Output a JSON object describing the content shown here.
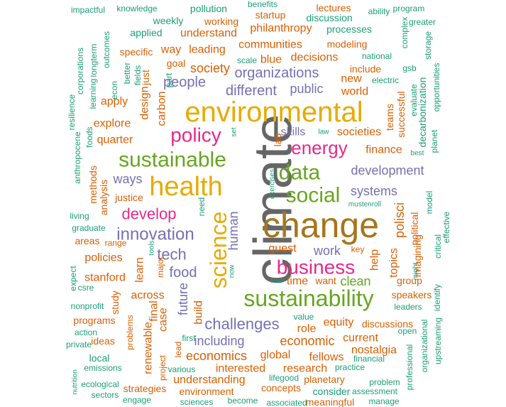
{
  "colors": {
    "teal": "#1b9e77",
    "orange": "#d95f02",
    "purple": "#7570b3",
    "magenta": "#e7298a",
    "green": "#66a61e",
    "gold": "#e6ab02",
    "brown": "#a6761d",
    "gray": "#666666"
  },
  "words": [
    {
      "text": "climate",
      "color": "gray"
    },
    {
      "text": "change",
      "color": "brown"
    },
    {
      "text": "environmental",
      "color": "gold"
    },
    {
      "text": "health",
      "color": "gold"
    },
    {
      "text": "sustainability",
      "color": "green"
    },
    {
      "text": "sustainable",
      "color": "green"
    },
    {
      "text": "science",
      "color": "gold"
    },
    {
      "text": "social",
      "color": "green"
    },
    {
      "text": "data",
      "color": "green"
    },
    {
      "text": "business",
      "color": "magenta"
    },
    {
      "text": "policy",
      "color": "magenta"
    },
    {
      "text": "energy",
      "color": "magenta"
    },
    {
      "text": "innovation",
      "color": "purple"
    },
    {
      "text": "develop",
      "color": "magenta"
    },
    {
      "text": "tech",
      "color": "purple"
    },
    {
      "text": "food",
      "color": "purple"
    },
    {
      "text": "challenges",
      "color": "purple"
    },
    {
      "text": "different",
      "color": "purple"
    },
    {
      "text": "organizations",
      "color": "purple"
    },
    {
      "text": "development",
      "color": "purple"
    },
    {
      "text": "systems",
      "color": "purple"
    },
    {
      "text": "people",
      "color": "purple"
    },
    {
      "text": "ways",
      "color": "purple"
    },
    {
      "text": "including",
      "color": "purple"
    },
    {
      "text": "work",
      "color": "purple"
    },
    {
      "text": "skills",
      "color": "purple"
    },
    {
      "text": "public",
      "color": "purple"
    },
    {
      "text": "human",
      "color": "purple"
    },
    {
      "text": "future",
      "color": "purple"
    },
    {
      "text": "polisci",
      "color": "orange"
    },
    {
      "text": "economic",
      "color": "orange"
    },
    {
      "text": "economics",
      "color": "orange"
    },
    {
      "text": "design",
      "color": "orange"
    },
    {
      "text": "carbon",
      "color": "orange"
    },
    {
      "text": "across",
      "color": "orange"
    },
    {
      "text": "societies",
      "color": "orange"
    },
    {
      "text": "finance",
      "color": "orange"
    },
    {
      "text": "world",
      "color": "orange"
    },
    {
      "text": "society",
      "color": "orange"
    },
    {
      "text": "explore",
      "color": "orange"
    },
    {
      "text": "quarter",
      "color": "orange"
    },
    {
      "text": "understand",
      "color": "orange"
    },
    {
      "text": "leading",
      "color": "orange"
    },
    {
      "text": "way",
      "color": "orange"
    },
    {
      "text": "philanthropy",
      "color": "orange"
    },
    {
      "text": "communities",
      "color": "orange"
    },
    {
      "text": "decisions",
      "color": "orange"
    },
    {
      "text": "blue",
      "color": "orange"
    },
    {
      "text": "new",
      "color": "orange"
    },
    {
      "text": "apply",
      "color": "orange"
    },
    {
      "text": "specific",
      "color": "orange"
    },
    {
      "text": "just",
      "color": "orange"
    },
    {
      "text": "goal",
      "color": "orange"
    },
    {
      "text": "policies",
      "color": "orange"
    },
    {
      "text": "stanford",
      "color": "orange"
    },
    {
      "text": "learn",
      "color": "orange"
    },
    {
      "text": "build",
      "color": "orange"
    },
    {
      "text": "case",
      "color": "orange"
    },
    {
      "text": "final",
      "color": "orange"
    },
    {
      "text": "study",
      "color": "orange"
    },
    {
      "text": "renewable",
      "color": "orange"
    },
    {
      "text": "interested",
      "color": "orange"
    },
    {
      "text": "understanding",
      "color": "orange"
    },
    {
      "text": "global",
      "color": "orange"
    },
    {
      "text": "research",
      "color": "orange"
    },
    {
      "text": "fellows",
      "color": "orange"
    },
    {
      "text": "equity",
      "color": "orange"
    },
    {
      "text": "role",
      "color": "orange"
    },
    {
      "text": "current",
      "color": "orange"
    },
    {
      "text": "nostalgia",
      "color": "orange"
    },
    {
      "text": "guest",
      "color": "orange"
    },
    {
      "text": "time",
      "color": "orange"
    },
    {
      "text": "clean",
      "color": "green"
    },
    {
      "text": "help",
      "color": "orange"
    },
    {
      "text": "topics",
      "color": "orange"
    },
    {
      "text": "imagining",
      "color": "orange"
    },
    {
      "text": "political",
      "color": "orange"
    },
    {
      "text": "speakers",
      "color": "orange"
    },
    {
      "text": "discussions",
      "color": "orange"
    },
    {
      "text": "methods",
      "color": "orange"
    },
    {
      "text": "analysis",
      "color": "orange"
    },
    {
      "text": "justice",
      "color": "orange"
    },
    {
      "text": "group",
      "color": "orange"
    },
    {
      "text": "modeling",
      "color": "orange"
    },
    {
      "text": "include",
      "color": "orange"
    },
    {
      "text": "teams",
      "color": "orange"
    },
    {
      "text": "successful",
      "color": "orange"
    },
    {
      "text": "lab",
      "color": "orange"
    },
    {
      "text": "planetary",
      "color": "orange"
    },
    {
      "text": "concepts",
      "color": "orange"
    },
    {
      "text": "environment",
      "color": "orange"
    },
    {
      "text": "strategies",
      "color": "orange"
    },
    {
      "text": "programs",
      "color": "orange"
    },
    {
      "text": "working",
      "color": "orange"
    },
    {
      "text": "want",
      "color": "orange"
    },
    {
      "text": "lead",
      "color": "orange"
    },
    {
      "text": "range",
      "color": "orange"
    },
    {
      "text": "areas",
      "color": "orange"
    },
    {
      "text": "problems",
      "color": "orange"
    },
    {
      "text": "ideas",
      "color": "orange"
    },
    {
      "text": "major",
      "color": "orange"
    },
    {
      "text": "key",
      "color": "orange"
    },
    {
      "text": "project",
      "color": "orange"
    },
    {
      "text": "startup",
      "color": "orange"
    },
    {
      "text": "lectures",
      "color": "orange"
    },
    {
      "text": "meaningful",
      "color": "orange"
    },
    {
      "text": "decarbonization",
      "color": "teal"
    },
    {
      "text": "impactful",
      "color": "teal"
    },
    {
      "text": "knowledge",
      "color": "teal"
    },
    {
      "text": "pollution",
      "color": "teal"
    },
    {
      "text": "benefits",
      "color": "teal"
    },
    {
      "text": "discussion",
      "color": "teal"
    },
    {
      "text": "ability",
      "color": "teal"
    },
    {
      "text": "program",
      "color": "teal"
    },
    {
      "text": "greater",
      "color": "teal"
    },
    {
      "text": "weekly",
      "color": "teal"
    },
    {
      "text": "applied",
      "color": "teal"
    },
    {
      "text": "processes",
      "color": "teal"
    },
    {
      "text": "complex",
      "color": "teal"
    },
    {
      "text": "storage",
      "color": "teal"
    },
    {
      "text": "outcomes",
      "color": "teal"
    },
    {
      "text": "longterm",
      "color": "teal"
    },
    {
      "text": "corporations",
      "color": "teal"
    },
    {
      "text": "resilience",
      "color": "teal"
    },
    {
      "text": "learning",
      "color": "teal"
    },
    {
      "text": "econ",
      "color": "teal"
    },
    {
      "text": "better",
      "color": "teal"
    },
    {
      "text": "fields",
      "color": "teal"
    },
    {
      "text": "part",
      "color": "teal"
    },
    {
      "text": "scale",
      "color": "teal"
    },
    {
      "text": "national",
      "color": "teal"
    },
    {
      "text": "gsb",
      "color": "teal"
    },
    {
      "text": "electric",
      "color": "teal"
    },
    {
      "text": "evaluate",
      "color": "teal"
    },
    {
      "text": "opportunities",
      "color": "teal"
    },
    {
      "text": "anthropocene",
      "color": "teal"
    },
    {
      "text": "foods",
      "color": "teal"
    },
    {
      "text": "set",
      "color": "teal"
    },
    {
      "text": "law",
      "color": "teal"
    },
    {
      "text": "best",
      "color": "teal"
    },
    {
      "text": "planet",
      "color": "teal"
    },
    {
      "text": "exercises",
      "color": "teal"
    },
    {
      "text": "mustenroll",
      "color": "teal"
    },
    {
      "text": "model",
      "color": "teal"
    },
    {
      "text": "living",
      "color": "teal"
    },
    {
      "text": "graduate",
      "color": "teal"
    },
    {
      "text": "need",
      "color": "teal"
    },
    {
      "text": "effective",
      "color": "teal"
    },
    {
      "text": "critical",
      "color": "teal"
    },
    {
      "text": "might",
      "color": "teal"
    },
    {
      "text": "tools",
      "color": "teal"
    },
    {
      "text": "now",
      "color": "teal"
    },
    {
      "text": "expect",
      "color": "teal"
    },
    {
      "text": "csre",
      "color": "teal"
    },
    {
      "text": "real",
      "color": "teal"
    },
    {
      "text": "nonprofit",
      "color": "teal"
    },
    {
      "text": "identify",
      "color": "teal"
    },
    {
      "text": "leaders",
      "color": "teal"
    },
    {
      "text": "value",
      "color": "teal"
    },
    {
      "text": "action",
      "color": "teal"
    },
    {
      "text": "private",
      "color": "teal"
    },
    {
      "text": "open",
      "color": "teal"
    },
    {
      "text": "organizational",
      "color": "teal"
    },
    {
      "text": "upstreaming",
      "color": "teal"
    },
    {
      "text": "first",
      "color": "teal"
    },
    {
      "text": "local",
      "color": "teal"
    },
    {
      "text": "emissions",
      "color": "teal"
    },
    {
      "text": "various",
      "color": "teal"
    },
    {
      "text": "practice",
      "color": "teal"
    },
    {
      "text": "financial",
      "color": "teal"
    },
    {
      "text": "professional",
      "color": "teal"
    },
    {
      "text": "nutrition",
      "color": "teal"
    },
    {
      "text": "ecological",
      "color": "teal"
    },
    {
      "text": "sectors",
      "color": "teal"
    },
    {
      "text": "engage",
      "color": "teal"
    },
    {
      "text": "sciences",
      "color": "teal"
    },
    {
      "text": "become",
      "color": "teal"
    },
    {
      "text": "associated",
      "color": "teal"
    },
    {
      "text": "lifegood",
      "color": "teal"
    },
    {
      "text": "consider",
      "color": "teal"
    },
    {
      "text": "assessment",
      "color": "teal"
    },
    {
      "text": "problem",
      "color": "teal"
    },
    {
      "text": "manage",
      "color": "teal"
    }
  ]
}
